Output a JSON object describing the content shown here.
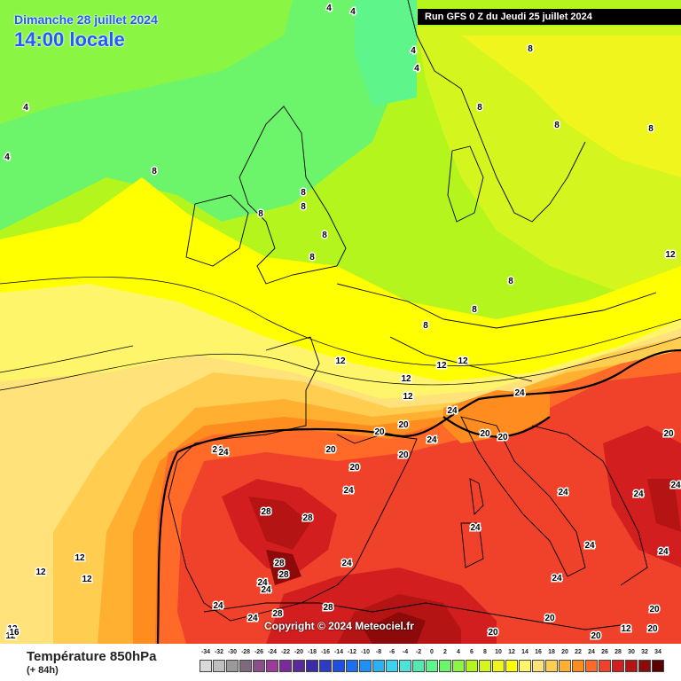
{
  "header": {
    "date": "Dimanche 28 juillet 2024",
    "time": "14:00 locale",
    "run": "Run GFS 0 Z du Jeudi 25 juillet 2024"
  },
  "copyright": "Copyright © 2024 Meteociel.fr",
  "legend": {
    "title": "Température 850hPa",
    "subtitle": "(+ 84h)",
    "ticks": [
      "-34",
      "-32",
      "-30",
      "-28",
      "-26",
      "-24",
      "-22",
      "-20",
      "-18",
      "-16",
      "-14",
      "-12",
      "-10",
      "-8",
      "-6",
      "-4",
      "-2",
      "0",
      "2",
      "4",
      "6",
      "8",
      "10",
      "12",
      "14",
      "16",
      "18",
      "20",
      "22",
      "24",
      "26",
      "28",
      "30",
      "32",
      "34"
    ],
    "colors": [
      "#d9d9d9",
      "#bfbfbf",
      "#9a9a9a",
      "#7d6a7d",
      "#8a4f8a",
      "#9b3c9b",
      "#7a2a9a",
      "#5a2a9a",
      "#3c2aa8",
      "#2a3cc8",
      "#1f4fe0",
      "#1e6ff0",
      "#1e8ff5",
      "#2bb0f5",
      "#3dd0f0",
      "#4de3d8",
      "#55e8b0",
      "#5ef58a",
      "#6cf56a",
      "#8af542",
      "#b4f51e",
      "#d4f51e",
      "#f0f51e",
      "#ffff00",
      "#fff56a",
      "#ffe27a",
      "#ffcd50",
      "#ffb030",
      "#ff8c1e",
      "#ff6a28",
      "#f0412a",
      "#d21e1e",
      "#b41414",
      "#8c0a0a",
      "#5a0000"
    ]
  },
  "isotherm_labels": [
    "4",
    "4",
    "4",
    "4",
    "4",
    "4",
    "8",
    "8",
    "8",
    "8",
    "8",
    "8",
    "8",
    "8",
    "8",
    "8",
    "8",
    "8",
    "8",
    "12",
    "12",
    "12",
    "12",
    "12",
    "12",
    "12",
    "12",
    "12",
    "12",
    "12",
    "12",
    "16",
    "20",
    "20",
    "20",
    "20",
    "20",
    "20",
    "20",
    "20",
    "20",
    "20",
    "20",
    "20",
    "20",
    "24",
    "24",
    "24",
    "24",
    "24",
    "24",
    "24",
    "24",
    "24",
    "24",
    "24",
    "24",
    "24",
    "24",
    "24",
    "24",
    "24",
    "24",
    "28",
    "28",
    "28",
    "28",
    "28",
    "28"
  ]
}
